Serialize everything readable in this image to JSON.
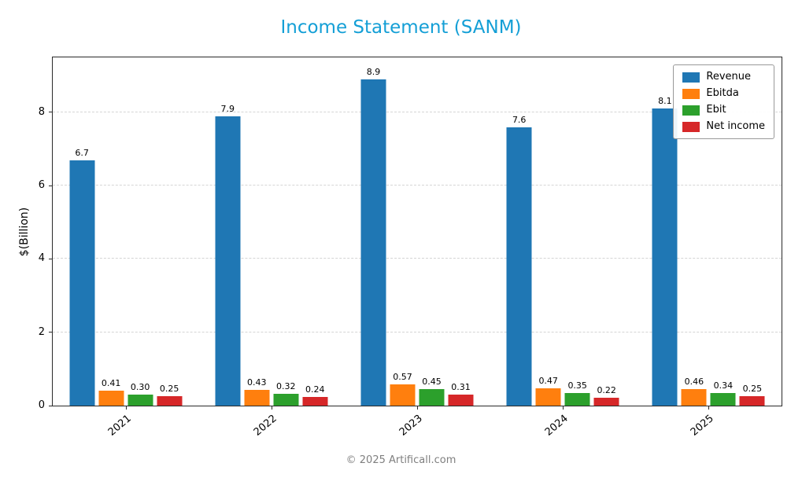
{
  "title": "Income Statement (SANM)",
  "title_color": "#149fd6",
  "footer": "© 2025 Artificall.com",
  "chart_data": {
    "type": "bar",
    "title": "Income Statement (SANM)",
    "xlabel": "",
    "ylabel": "$(Billion)",
    "categories": [
      "2021",
      "2022",
      "2023",
      "2024",
      "2025"
    ],
    "series": [
      {
        "name": "Revenue",
        "color": "#1f77b4",
        "values": [
          6.7,
          7.9,
          8.9,
          7.6,
          8.1
        ],
        "labels": [
          "6.7",
          "7.9",
          "8.9",
          "7.6",
          "8.1"
        ]
      },
      {
        "name": "Ebitda",
        "color": "#ff7f0e",
        "values": [
          0.41,
          0.43,
          0.57,
          0.47,
          0.46
        ],
        "labels": [
          "0.41",
          "0.43",
          "0.57",
          "0.47",
          "0.46"
        ]
      },
      {
        "name": "Ebit",
        "color": "#2ca02c",
        "values": [
          0.3,
          0.32,
          0.45,
          0.35,
          0.34
        ],
        "labels": [
          "0.30",
          "0.32",
          "0.45",
          "0.35",
          "0.34"
        ]
      },
      {
        "name": "Net income",
        "color": "#d62728",
        "values": [
          0.25,
          0.24,
          0.31,
          0.22,
          0.25
        ],
        "labels": [
          "0.25",
          "0.24",
          "0.31",
          "0.22",
          "0.25"
        ]
      }
    ],
    "yticks": [
      0,
      2,
      4,
      6,
      8
    ],
    "ylim": [
      0,
      9.5
    ],
    "grid": true,
    "grid_style": "dashed",
    "legend_position": "top-right"
  }
}
